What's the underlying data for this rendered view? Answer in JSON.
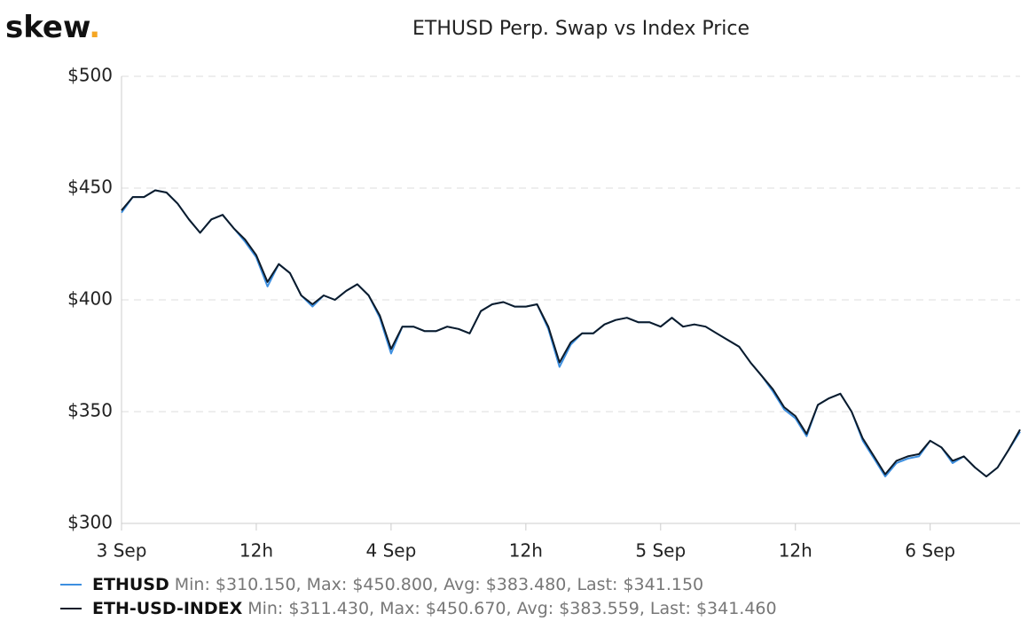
{
  "chart_data": {
    "type": "line",
    "logo": [
      "skew",
      "."
    ],
    "title": "ETHUSD Perp. Swap vs Index Price",
    "x": [
      0,
      1,
      2,
      3,
      4,
      5,
      6,
      7,
      8,
      9,
      10,
      11,
      12,
      13,
      14,
      15,
      16,
      17,
      18,
      19,
      20,
      21,
      22,
      23,
      24,
      25,
      26,
      27,
      28,
      29,
      30,
      31,
      32,
      33,
      34,
      35,
      36,
      37,
      38,
      39,
      40,
      41,
      42,
      43,
      44,
      45,
      46,
      47,
      48,
      49,
      50,
      51,
      52,
      53,
      54,
      55,
      56,
      57,
      58,
      59,
      60,
      61,
      62,
      63,
      64,
      65,
      66,
      67,
      68,
      69,
      70,
      71,
      72,
      73,
      74,
      75,
      76,
      77,
      78,
      79,
      80
    ],
    "xlim": [
      0,
      80
    ],
    "xticks": [
      {
        "value": 0,
        "label": "3 Sep"
      },
      {
        "value": 12,
        "label": "12h"
      },
      {
        "value": 24,
        "label": "4 Sep"
      },
      {
        "value": 36,
        "label": "12h"
      },
      {
        "value": 48,
        "label": "5 Sep"
      },
      {
        "value": 60,
        "label": "12h"
      },
      {
        "value": 72,
        "label": "6 Sep"
      }
    ],
    "ylim": [
      300,
      500
    ],
    "yticks": [
      {
        "value": 300,
        "label": "$300"
      },
      {
        "value": 350,
        "label": "$350"
      },
      {
        "value": 400,
        "label": "$400"
      },
      {
        "value": 450,
        "label": "$450"
      },
      {
        "value": 500,
        "label": "$500"
      }
    ],
    "grid": true,
    "series": [
      {
        "name": "ETHUSD",
        "color": "#3d8fe0",
        "stats": "Min: $310.150, Max: $450.800, Avg: $383.480, Last: $341.150",
        "values": [
          439,
          446,
          446,
          449,
          448,
          443,
          436,
          430,
          436,
          438,
          432,
          426,
          419,
          406,
          416,
          412,
          402,
          397,
          402,
          400,
          404,
          407,
          402,
          392,
          376,
          388,
          388,
          386,
          386,
          388,
          387,
          385,
          395,
          398,
          399,
          397,
          397,
          398,
          387,
          370,
          380,
          385,
          385,
          389,
          391,
          392,
          390,
          390,
          388,
          392,
          388,
          389,
          388,
          385,
          382,
          379,
          372,
          366,
          359,
          351,
          347,
          339,
          353,
          356,
          358,
          350,
          337,
          329,
          321,
          327,
          329,
          330,
          337,
          334,
          327,
          330,
          325,
          321,
          325,
          333,
          341
        ]
      },
      {
        "name": "ETH-USD-INDEX",
        "color": "#0d1b2a",
        "stats": "Min: $311.430, Max: $450.670, Avg: $383.559, Last: $341.460",
        "values": [
          440,
          446,
          446,
          449,
          448,
          443,
          436,
          430,
          436,
          438,
          432,
          427,
          420,
          408,
          416,
          412,
          402,
          398,
          402,
          400,
          404,
          407,
          402,
          393,
          378,
          388,
          388,
          386,
          386,
          388,
          387,
          385,
          395,
          398,
          399,
          397,
          397,
          398,
          388,
          372,
          381,
          385,
          385,
          389,
          391,
          392,
          390,
          390,
          388,
          392,
          388,
          389,
          388,
          385,
          382,
          379,
          372,
          366,
          360,
          352,
          348,
          340,
          353,
          356,
          358,
          350,
          338,
          330,
          322,
          328,
          330,
          331,
          337,
          334,
          328,
          330,
          325,
          321,
          325,
          333,
          342
        ]
      }
    ]
  }
}
